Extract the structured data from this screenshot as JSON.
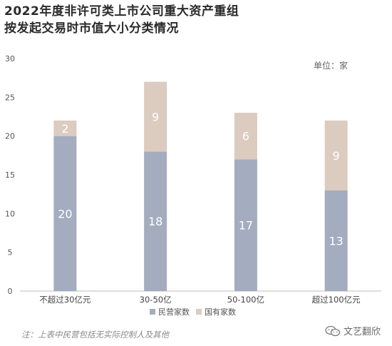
{
  "title_line1": "2022年度非许可类上市公司重大资产重组",
  "title_line2": "按发起交易时市值大小分类情况",
  "chart_data": {
    "type": "bar",
    "stacked": true,
    "categories": [
      "不超过30亿元",
      "30-50亿",
      "50-100亿",
      "超过100亿元"
    ],
    "series": [
      {
        "name": "民营家数",
        "values": [
          20,
          18,
          17,
          13
        ],
        "color": "#a4adbf"
      },
      {
        "name": "国有家数",
        "values": [
          2,
          9,
          6,
          9
        ],
        "color": "#dccbbf"
      }
    ],
    "ylim": [
      0,
      30
    ],
    "yticks": [
      0,
      5,
      10,
      15,
      20,
      25,
      30
    ],
    "unit_label": "单位：家",
    "grid": false,
    "legend": "bottom-center"
  },
  "note": "注：上表中民营包括无实际控制人及其他",
  "logo_text": "文艺翻欣"
}
